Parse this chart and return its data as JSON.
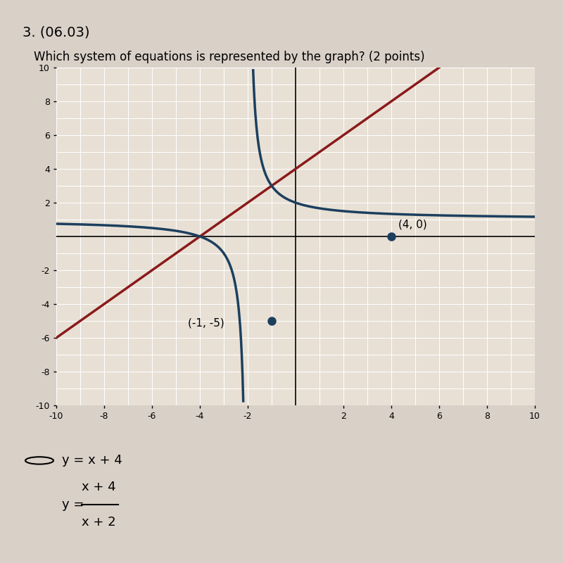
{
  "title_line1": "3. (06.03)",
  "question": "Which system of equations is represented by the graph? (2 points)",
  "xmin": -10,
  "xmax": 10,
  "ymin": -10,
  "ymax": 10,
  "xticks": [
    -10,
    -8,
    -6,
    -4,
    -2,
    2,
    4,
    6,
    8,
    10
  ],
  "yticks": [
    -10,
    -8,
    -6,
    -4,
    -2,
    2,
    4,
    6,
    8,
    10
  ],
  "line_color": "#8B1A1A",
  "curve_color": "#1C3F5E",
  "bg_color": "#D9D0C8",
  "plot_bg": "#E8E0D5",
  "point1": [
    4,
    0
  ],
  "point2": [
    -1,
    -5
  ],
  "point_color": "#1C3F5E",
  "answer_option": "y = x + 4",
  "answer_fraction_num": "x + 4",
  "answer_fraction_den": "x + 2",
  "answer_prefix": "y = "
}
